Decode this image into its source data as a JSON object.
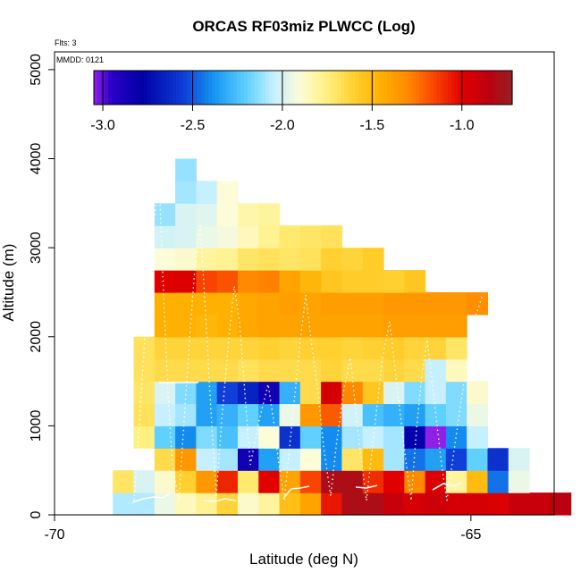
{
  "chart_data": {
    "type": "heatmap",
    "title": "ORCAS RF03miz PLWCC (Log)",
    "xlabel": "Latitude (deg N)",
    "ylabel": "Altitude (m)",
    "xlim": [
      -70,
      -64
    ],
    "ylim": [
      0,
      5200
    ],
    "x_ticks": [
      {
        "value": -70,
        "label": "-70"
      },
      {
        "value": -65,
        "label": "-65"
      }
    ],
    "y_ticks": [
      {
        "value": 0,
        "label": "0"
      },
      {
        "value": 1000,
        "label": "1000"
      },
      {
        "value": 2000,
        "label": "2000"
      },
      {
        "value": 3000,
        "label": "3000"
      },
      {
        "value": 4000,
        "label": "4000"
      },
      {
        "value": 5000,
        "label": "5000"
      }
    ],
    "annotations": {
      "flights": "Flts: 3",
      "date": "MMDD: 0121"
    },
    "colorbar": {
      "min": -3.05,
      "max": -0.72,
      "ticks": [
        {
          "value": -3.0,
          "label": "-3.0"
        },
        {
          "value": -2.5,
          "label": "-2.5"
        },
        {
          "value": -2.0,
          "label": "-2.0"
        },
        {
          "value": -1.5,
          "label": "-1.5"
        },
        {
          "value": -1.0,
          "label": "-1.0"
        }
      ],
      "stops": [
        {
          "v": -3.05,
          "c": "#8f20e8"
        },
        {
          "v": -2.95,
          "c": "#2a00c8"
        },
        {
          "v": -2.78,
          "c": "#0000a6"
        },
        {
          "v": -2.55,
          "c": "#0f3ed8"
        },
        {
          "v": -2.38,
          "c": "#1596f2"
        },
        {
          "v": -2.2,
          "c": "#5fd0ff"
        },
        {
          "v": -2.05,
          "c": "#c6efff"
        },
        {
          "v": -1.9,
          "c": "#fcfcd8"
        },
        {
          "v": -1.75,
          "c": "#fff080"
        },
        {
          "v": -1.6,
          "c": "#ffd030"
        },
        {
          "v": -1.45,
          "c": "#ffb000"
        },
        {
          "v": -1.3,
          "c": "#ff8a00"
        },
        {
          "v": -1.15,
          "c": "#f84400"
        },
        {
          "v": -1.0,
          "c": "#e00000"
        },
        {
          "v": -0.85,
          "c": "#bb0010"
        },
        {
          "v": -0.72,
          "c": "#962222"
        }
      ]
    },
    "bin": {
      "dlat": 0.25,
      "dalt": 250
    },
    "rows": [
      {
        "alt": 0,
        "lat0": -69.3,
        "values": [
          -2.08,
          -2.08,
          -1.95,
          -1.85,
          -1.78,
          -1.62,
          -1.88,
          -1.8,
          -1.52,
          -1.4,
          -1.05,
          -0.8,
          -0.8,
          -0.9,
          -0.95,
          -0.92,
          -0.95,
          -0.95,
          -0.98,
          -0.9,
          -0.9,
          -0.85
        ]
      },
      {
        "alt": 250,
        "lat0": -69.3,
        "values": [
          -1.7,
          -2.0,
          -1.88,
          -1.6,
          -1.35,
          -1.08,
          -1.72,
          -1.0,
          -1.4,
          -1.15,
          -0.8,
          -0.8,
          -1.1,
          -1.0,
          -1.3,
          -0.98,
          -1.8,
          -1.5,
          -2.45,
          -1.95
        ]
      },
      {
        "alt": 500,
        "lat0": -68.8,
        "values": [
          -1.65,
          -1.35,
          -2.05,
          -2.1,
          -2.85,
          -2.35,
          -2.05,
          -1.9,
          -2.4,
          -1.7,
          -1.5,
          -2.1,
          -2.45,
          -2.35,
          -2.55,
          -2.2,
          -2.6,
          -2.0
        ]
      },
      {
        "alt": 750,
        "lat0": -69.05,
        "values": [
          -1.75,
          -2.2,
          -2.4,
          -2.15,
          -2.25,
          -2.05,
          -1.9,
          -2.6,
          -2.2,
          -2.4,
          -2.1,
          -2.05,
          -2.1,
          -2.8,
          -3.05,
          -2.4,
          -2.05
        ]
      },
      {
        "alt": 1000,
        "lat0": -69.05,
        "values": [
          -1.68,
          -2.05,
          -2.1,
          -2.35,
          -2.3,
          -2.2,
          -2.35,
          -1.95,
          -1.35,
          -1.2,
          -2.02,
          -2.25,
          -2.3,
          -2.35,
          -2.2,
          -2.15,
          -1.95
        ]
      },
      {
        "alt": 1250,
        "lat0": -69.05,
        "values": [
          -1.7,
          -2.0,
          -2.15,
          -2.35,
          -2.55,
          -2.65,
          -2.85,
          -2.3,
          -1.65,
          -0.95,
          -1.3,
          -1.55,
          -2.0,
          -2.15,
          -2.05,
          -2.15,
          -1.88
        ]
      },
      {
        "alt": 1500,
        "lat0": -69.05,
        "values": [
          -1.68,
          -1.65,
          -1.65,
          -1.65,
          -1.65,
          -1.68,
          -1.65,
          -1.65,
          -1.65,
          -1.62,
          -1.65,
          -1.65,
          -1.62,
          -1.65,
          -2.05,
          -1.85
        ]
      },
      {
        "alt": 1750,
        "lat0": -69.05,
        "values": [
          -1.68,
          -1.62,
          -1.62,
          -1.62,
          -1.62,
          -1.62,
          -1.6,
          -1.62,
          -1.6,
          -1.6,
          -1.62,
          -1.6,
          -1.58,
          -1.62,
          -1.62,
          -1.7
        ]
      },
      {
        "alt": 2000,
        "lat0": -68.8,
        "values": [
          -1.45,
          -1.45,
          -1.48,
          -1.45,
          -1.42,
          -1.4,
          -1.4,
          -1.4,
          -1.4,
          -1.4,
          -1.4,
          -1.38,
          -1.38,
          -1.38,
          -1.38
        ]
      },
      {
        "alt": 2250,
        "lat0": -68.8,
        "values": [
          -1.45,
          -1.45,
          -1.45,
          -1.45,
          -1.42,
          -1.4,
          -1.38,
          -1.4,
          -1.38,
          -1.38,
          -1.38,
          -1.35,
          -1.35,
          -1.35,
          -1.35,
          -1.32
        ]
      },
      {
        "alt": 2500,
        "lat0": -68.8,
        "values": [
          -1.0,
          -0.98,
          -1.15,
          -1.18,
          -1.3,
          -1.28,
          -1.4,
          -1.48,
          -1.55,
          -1.58,
          -1.58,
          -1.6,
          -1.55
        ]
      },
      {
        "alt": 2750,
        "lat0": -68.8,
        "values": [
          -1.9,
          -1.88,
          -1.8,
          -1.78,
          -1.7,
          -1.68,
          -1.7,
          -1.68,
          -1.6,
          -1.62,
          -1.58
        ]
      },
      {
        "alt": 3000,
        "lat0": -68.8,
        "values": [
          -2.02,
          -2.0,
          -1.95,
          -1.92,
          -1.85,
          -1.78,
          -1.72,
          -1.7,
          -1.68
        ]
      },
      {
        "alt": 3250,
        "lat0": -68.8,
        "values": [
          -2.12,
          -2.0,
          -1.98,
          -1.9,
          -1.82,
          -1.8
        ]
      },
      {
        "alt": 3500,
        "lat0": -68.55,
        "values": [
          -2.1,
          -2.05,
          -1.9
        ]
      },
      {
        "alt": 3750,
        "lat0": -68.55,
        "values": [
          -2.12
        ]
      }
    ]
  }
}
